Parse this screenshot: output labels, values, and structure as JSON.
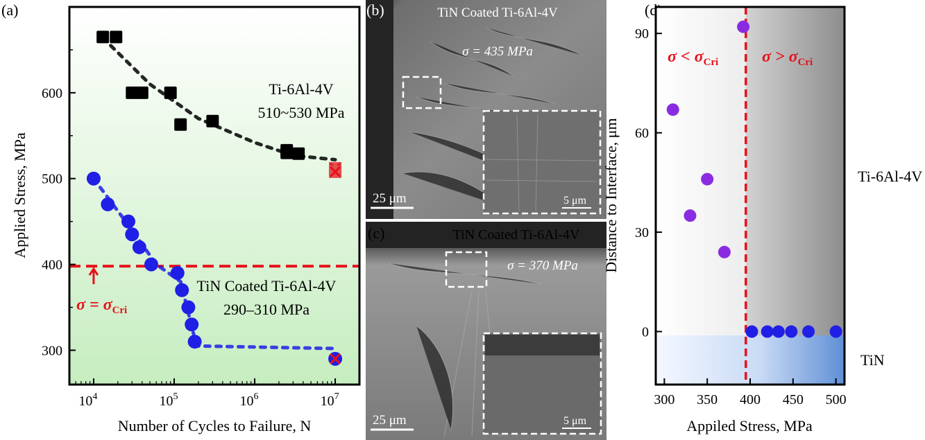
{
  "panel_labels": {
    "a": "(a)",
    "b": "(b)",
    "c": "(c)",
    "d": "(d)"
  },
  "chart_data": [
    {
      "type": "scatter",
      "panel": "(a)",
      "xlabel": "Number of Cycles to Failure, N",
      "ylabel": "Applied Stress, MPa",
      "xscale": "log",
      "xlim": [
        5000,
        20000000
      ],
      "ylim": [
        260,
        700
      ],
      "yticks": [
        300,
        400,
        500,
        600
      ],
      "xticks": [
        {
          "v": 10000,
          "base": "10",
          "exp": "4"
        },
        {
          "v": 100000,
          "base": "10",
          "exp": "5"
        },
        {
          "v": 1000000,
          "base": "10",
          "exp": "6"
        },
        {
          "v": 10000000,
          "base": "10",
          "exp": "7"
        }
      ],
      "series": [
        {
          "name": "Ti-6Al-4V",
          "marker": "square",
          "color": "#000000",
          "points": [
            [
              13000,
              665
            ],
            [
              19000,
              665
            ],
            [
              30000,
              600
            ],
            [
              40000,
              600
            ],
            [
              90000,
              600
            ],
            [
              120000,
              563
            ],
            [
              300000,
              567
            ],
            [
              2500000,
              533
            ],
            [
              2500000,
              530
            ],
            [
              3500000,
              529
            ]
          ],
          "runout": [
            [
              10000000,
              512
            ],
            [
              10000000,
              508
            ]
          ]
        },
        {
          "name": "TiN Coated Ti-6Al-4V",
          "marker": "circle",
          "color": "#1f1fe6",
          "points": [
            [
              10000,
              500
            ],
            [
              15000,
              470
            ],
            [
              27000,
              450
            ],
            [
              30000,
              435
            ],
            [
              37000,
              420
            ],
            [
              52000,
              400
            ],
            [
              110000,
              390
            ],
            [
              125000,
              370
            ],
            [
              150000,
              350
            ],
            [
              165000,
              330
            ],
            [
              180000,
              310
            ]
          ],
          "runout": [
            [
              10000000,
              290
            ]
          ]
        }
      ],
      "annotations": {
        "ti_name": "Ti-6Al-4V",
        "ti_range": "510~530 MPa",
        "tin_name": "TiN Coated Ti-6Al-4V",
        "tin_range": "290–310 MPa",
        "critical_line_y": 398,
        "critical_label_main": "σ = σ",
        "critical_label_sub": "Cri"
      },
      "colors": {
        "background_top": "#ffffff",
        "background_bottom": "#c6edc0",
        "critical": "#e8101a"
      }
    },
    {
      "type": "scatter",
      "panel": "(d)",
      "xlabel": "Appiled Stress, MPa",
      "ylabel": "Distance to Interface, μm",
      "xlim": [
        290,
        510
      ],
      "ylim": [
        -16,
        98
      ],
      "xticks": [
        300,
        350,
        400,
        450,
        500
      ],
      "yticks": [
        0,
        30,
        60,
        90
      ],
      "series": [
        {
          "name": "",
          "color": "#8a2be2",
          "x": [
            310,
            330,
            350,
            370,
            392
          ],
          "y": [
            67,
            35,
            46,
            24,
            92
          ]
        },
        {
          "name": "",
          "color": "#1f1fe6",
          "x": [
            402,
            420,
            433,
            448,
            468,
            500
          ],
          "y": [
            0,
            0,
            0,
            0,
            0,
            0
          ]
        }
      ],
      "critical_x": 395,
      "region_left_main": "σ < σ",
      "region_left_sub": "Cri",
      "region_right_main": "σ > σ",
      "region_right_sub": "Cri",
      "side_labels": {
        "upper": "Ti-6Al-4V",
        "lower": "TiN"
      }
    }
  ],
  "micrographs": {
    "b": {
      "title": "TiN Coated Ti-6Al-4V",
      "stress": "σ = 435 MPa",
      "scale_main": "25 μm",
      "scale_inset": "5 μm"
    },
    "c": {
      "title": "TiN Coated Ti-6Al-4V",
      "stress": "σ = 370 MPa",
      "scale_main": "25 μm",
      "scale_inset": "5 μm"
    }
  }
}
